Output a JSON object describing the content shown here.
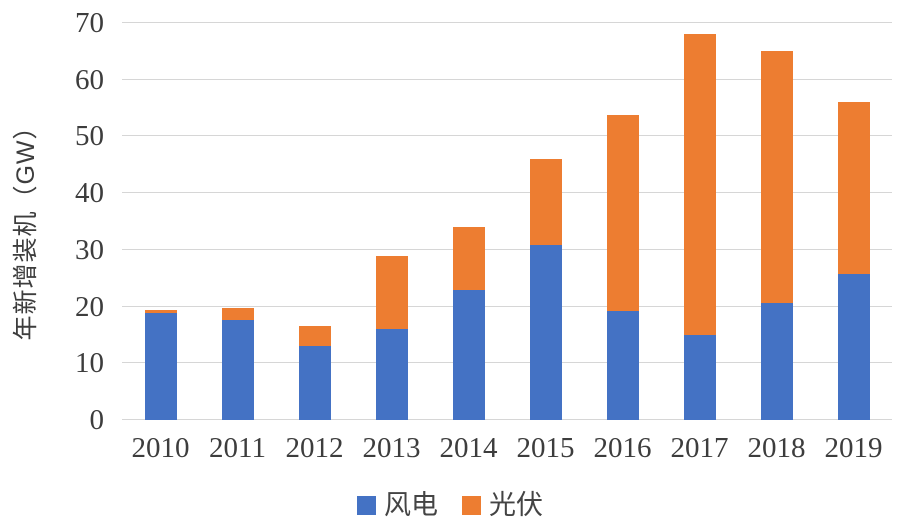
{
  "chart_data": {
    "type": "bar",
    "stacked": true,
    "title": "",
    "xlabel": "",
    "ylabel": "年新增装机（GW）",
    "ylim": [
      0,
      70
    ],
    "yticks": [
      0,
      10,
      20,
      30,
      40,
      50,
      60,
      70
    ],
    "grid": true,
    "legend_position": "bottom",
    "categories": [
      "2010",
      "2011",
      "2012",
      "2013",
      "2014",
      "2015",
      "2016",
      "2017",
      "2018",
      "2019"
    ],
    "series": [
      {
        "name": "风电",
        "color": "#4472C4",
        "values": [
          18.9,
          17.6,
          13.0,
          16.0,
          23.0,
          30.8,
          19.3,
          15.0,
          20.6,
          25.7
        ]
      },
      {
        "name": "光伏",
        "color": "#ED7D31",
        "values": [
          0.5,
          2.1,
          3.5,
          13.0,
          11.0,
          15.2,
          34.5,
          53.0,
          44.4,
          30.3
        ]
      }
    ],
    "totals": [
      19.4,
      19.7,
      16.5,
      29.0,
      34.0,
      46.0,
      53.8,
      68.0,
      65.0,
      56.0
    ]
  },
  "colors": {
    "wind": "#4472C4",
    "solar": "#ED7D31",
    "gridline": "#d6d6d6",
    "text": "#3d3d3d",
    "background": "#ffffff"
  }
}
